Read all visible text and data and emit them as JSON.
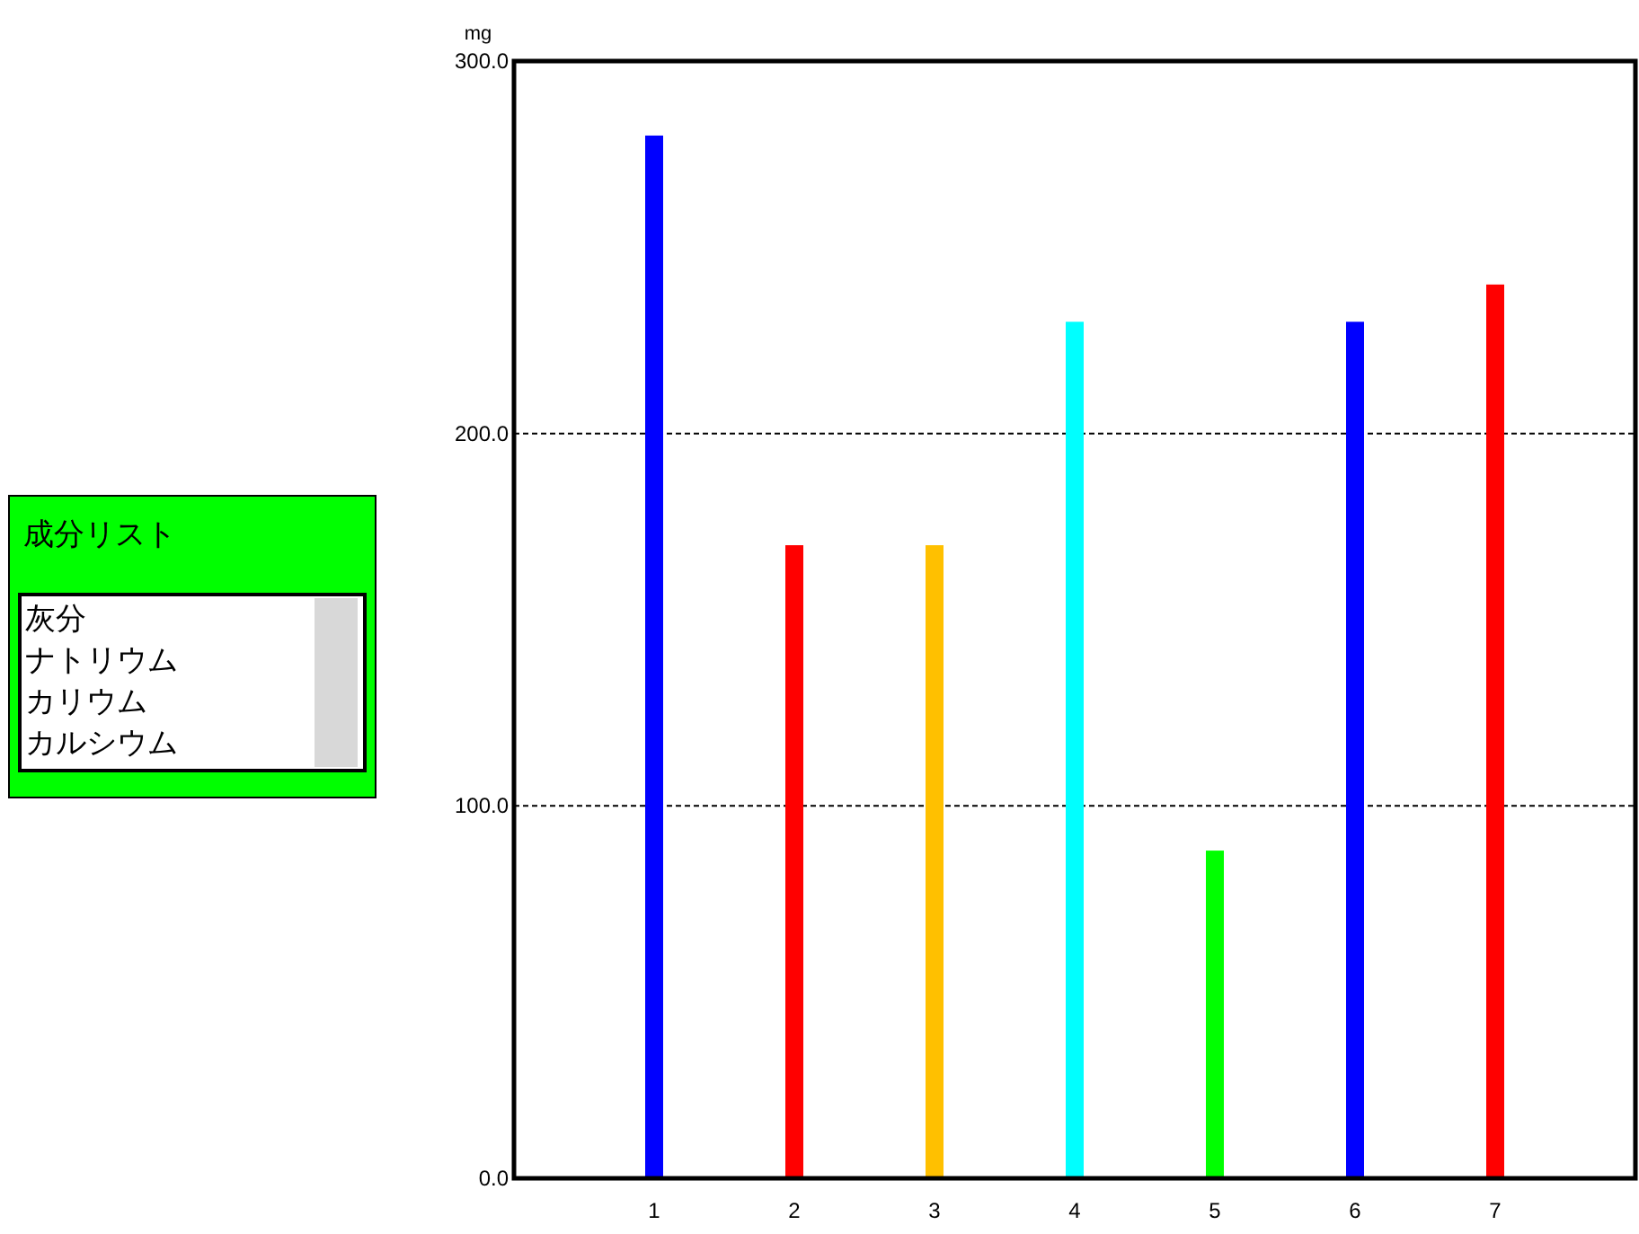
{
  "chart_data": [
    {
      "type": "other",
      "title": "成分リスト",
      "annotations": [
        "灰分",
        "ナトリウム",
        "カリウム",
        "カルシウム"
      ]
    },
    {
      "type": "bar",
      "ylabel": "mg",
      "categories": [
        "1",
        "2",
        "3",
        "4",
        "5",
        "6",
        "7"
      ],
      "values": [
        280,
        170,
        170,
        230,
        88,
        230,
        240
      ],
      "colors": [
        "#0000ff",
        "#ff0000",
        "#ffc000",
        "#00ffff",
        "#00ff00",
        "#0000ff",
        "#ff0000"
      ],
      "ylim": [
        0,
        300
      ],
      "yticks": [
        {
          "value": 0,
          "label": "0.0"
        },
        {
          "value": 100,
          "label": "100.0"
        },
        {
          "value": 200,
          "label": "200.0"
        },
        {
          "value": 300,
          "label": "300.0"
        }
      ],
      "grid": "y"
    }
  ]
}
